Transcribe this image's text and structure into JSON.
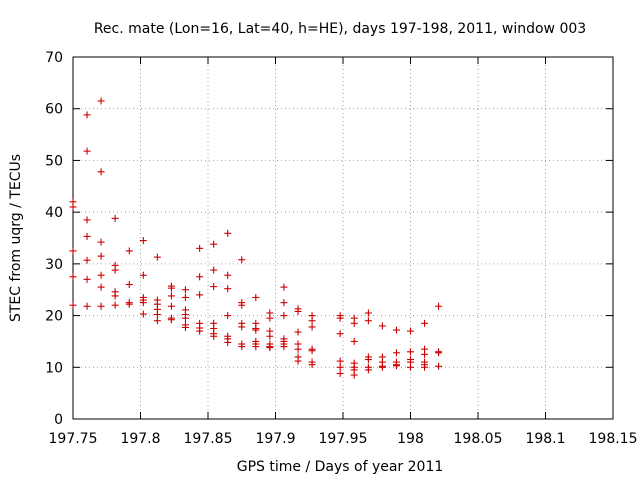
{
  "chart_data": {
    "type": "scatter",
    "title": "Rec. mate (Lon=16, Lat=40, h=HE), days 197-198, 2011, window 003",
    "xlabel": "GPS time / Days of year 2011",
    "ylabel": "STEC from uqrg / TECUs",
    "xlim": [
      197.75,
      198.15
    ],
    "ylim": [
      0,
      70
    ],
    "xticks": [
      197.75,
      197.8,
      197.85,
      197.9,
      197.95,
      198,
      198.05,
      198.1,
      198.15
    ],
    "xtick_labels": [
      "197.75",
      "197.8",
      "197.85",
      "197.9",
      "197.95",
      "198",
      "198.05",
      "198.1",
      "198.15"
    ],
    "yticks": [
      0,
      10,
      20,
      30,
      40,
      50,
      60,
      70
    ],
    "ytick_labels": [
      "0",
      "10",
      "20",
      "30",
      "40",
      "50",
      "60",
      "70"
    ],
    "grid": true,
    "marker": "+",
    "marker_color": "#cc0000",
    "series": [
      {
        "points": [
          [
            197.75,
            42
          ],
          [
            197.75,
            41
          ],
          [
            197.75,
            32.5
          ],
          [
            197.75,
            27.5
          ],
          [
            197.75,
            22
          ],
          [
            197.7604,
            58.8
          ],
          [
            197.7604,
            51.8
          ],
          [
            197.7604,
            38.5
          ],
          [
            197.7604,
            35.3
          ],
          [
            197.7604,
            30.7
          ],
          [
            197.7604,
            27
          ],
          [
            197.7604,
            21.8
          ],
          [
            197.7708,
            61.5
          ],
          [
            197.7708,
            47.8
          ],
          [
            197.7708,
            34.2
          ],
          [
            197.7708,
            31.5
          ],
          [
            197.7708,
            27.8
          ],
          [
            197.7708,
            25.5
          ],
          [
            197.7708,
            21.8
          ],
          [
            197.7812,
            38.8
          ],
          [
            197.7812,
            29.7
          ],
          [
            197.7812,
            28.8
          ],
          [
            197.7812,
            24.6
          ],
          [
            197.7812,
            23.8
          ],
          [
            197.7812,
            22
          ],
          [
            197.7917,
            32.5
          ],
          [
            197.7917,
            26
          ],
          [
            197.7917,
            22.5
          ],
          [
            197.7917,
            22.2
          ],
          [
            197.8021,
            34.5
          ],
          [
            197.8021,
            27.8
          ],
          [
            197.8021,
            23.5
          ],
          [
            197.8021,
            23
          ],
          [
            197.8021,
            22.5
          ],
          [
            197.8021,
            20.3
          ],
          [
            197.8125,
            31.3
          ],
          [
            197.8125,
            23
          ],
          [
            197.8125,
            22.2
          ],
          [
            197.8125,
            21.2
          ],
          [
            197.8125,
            20.2
          ],
          [
            197.8125,
            19
          ],
          [
            197.8229,
            25.7
          ],
          [
            197.8229,
            25.3
          ],
          [
            197.8229,
            23.8
          ],
          [
            197.8229,
            21.8
          ],
          [
            197.8229,
            19.5
          ],
          [
            197.8229,
            19.2
          ],
          [
            197.8333,
            25
          ],
          [
            197.8333,
            23.5
          ],
          [
            197.8333,
            21.1
          ],
          [
            197.8333,
            20.2
          ],
          [
            197.8333,
            19.5
          ],
          [
            197.8333,
            18.2
          ],
          [
            197.8333,
            17.7
          ],
          [
            197.8438,
            33
          ],
          [
            197.8438,
            27.5
          ],
          [
            197.8438,
            24
          ],
          [
            197.8438,
            18.5
          ],
          [
            197.8438,
            17.6
          ],
          [
            197.8438,
            17
          ],
          [
            197.8542,
            33.8
          ],
          [
            197.8542,
            28.8
          ],
          [
            197.8542,
            25.6
          ],
          [
            197.8542,
            18.5
          ],
          [
            197.8542,
            17.5
          ],
          [
            197.8542,
            16.5
          ],
          [
            197.8542,
            16
          ],
          [
            197.8646,
            35.9
          ],
          [
            197.8646,
            27.8
          ],
          [
            197.8646,
            25.2
          ],
          [
            197.8646,
            20
          ],
          [
            197.8646,
            16
          ],
          [
            197.8646,
            15.5
          ],
          [
            197.8646,
            14.8
          ],
          [
            197.875,
            30.8
          ],
          [
            197.875,
            22.5
          ],
          [
            197.875,
            22
          ],
          [
            197.875,
            18.5
          ],
          [
            197.875,
            17.8
          ],
          [
            197.875,
            14.5
          ],
          [
            197.875,
            14
          ],
          [
            197.8854,
            23.5
          ],
          [
            197.8854,
            18.5
          ],
          [
            197.8854,
            17.5
          ],
          [
            197.8854,
            17.2
          ],
          [
            197.8854,
            15
          ],
          [
            197.8854,
            14.5
          ],
          [
            197.8854,
            14
          ],
          [
            197.8958,
            20.5
          ],
          [
            197.8958,
            19.5
          ],
          [
            197.8958,
            17
          ],
          [
            197.8958,
            16
          ],
          [
            197.8958,
            14.5
          ],
          [
            197.8958,
            14
          ],
          [
            197.8958,
            13.8
          ],
          [
            197.9062,
            25.5
          ],
          [
            197.9062,
            22.5
          ],
          [
            197.9062,
            20
          ],
          [
            197.9062,
            15.5
          ],
          [
            197.9062,
            15
          ],
          [
            197.9062,
            14.5
          ],
          [
            197.9062,
            14
          ],
          [
            197.9167,
            21.3
          ],
          [
            197.9167,
            20.8
          ],
          [
            197.9167,
            16.8
          ],
          [
            197.9167,
            14.5
          ],
          [
            197.9167,
            13.5
          ],
          [
            197.9167,
            12
          ],
          [
            197.9167,
            11.2
          ],
          [
            197.9271,
            20
          ],
          [
            197.9271,
            19
          ],
          [
            197.9271,
            17.8
          ],
          [
            197.9271,
            13.5
          ],
          [
            197.9271,
            13.2
          ],
          [
            197.9271,
            11
          ],
          [
            197.9271,
            10.5
          ],
          [
            197.9479,
            20
          ],
          [
            197.9479,
            19.5
          ],
          [
            197.9479,
            16.5
          ],
          [
            197.9479,
            11.2
          ],
          [
            197.9479,
            10
          ],
          [
            197.9479,
            8.8
          ],
          [
            197.9583,
            19.5
          ],
          [
            197.9583,
            18.5
          ],
          [
            197.9583,
            15
          ],
          [
            197.9583,
            10.8
          ],
          [
            197.9583,
            10
          ],
          [
            197.9583,
            9.5
          ],
          [
            197.9583,
            8.5
          ],
          [
            197.9688,
            20.5
          ],
          [
            197.9688,
            19
          ],
          [
            197.9688,
            12
          ],
          [
            197.9688,
            11.5
          ],
          [
            197.9688,
            10
          ],
          [
            197.9688,
            9.5
          ],
          [
            197.9792,
            18
          ],
          [
            197.9792,
            12
          ],
          [
            197.9792,
            11
          ],
          [
            197.9792,
            10.2
          ],
          [
            197.9792,
            10
          ],
          [
            197.9896,
            17.2
          ],
          [
            197.9896,
            12.8
          ],
          [
            197.9896,
            11
          ],
          [
            197.9896,
            10.5
          ],
          [
            197.9896,
            10.3
          ],
          [
            198,
            17
          ],
          [
            198,
            13
          ],
          [
            198,
            11.5
          ],
          [
            198,
            11
          ],
          [
            198,
            10
          ],
          [
            198.0104,
            18.5
          ],
          [
            198.0104,
            13.5
          ],
          [
            198.0104,
            12.5
          ],
          [
            198.0104,
            11
          ],
          [
            198.0104,
            10.5
          ],
          [
            198.0104,
            10
          ],
          [
            198.0208,
            21.8
          ],
          [
            198.0208,
            13
          ],
          [
            198.0208,
            12.8
          ],
          [
            198.0208,
            10.2
          ]
        ]
      }
    ]
  }
}
